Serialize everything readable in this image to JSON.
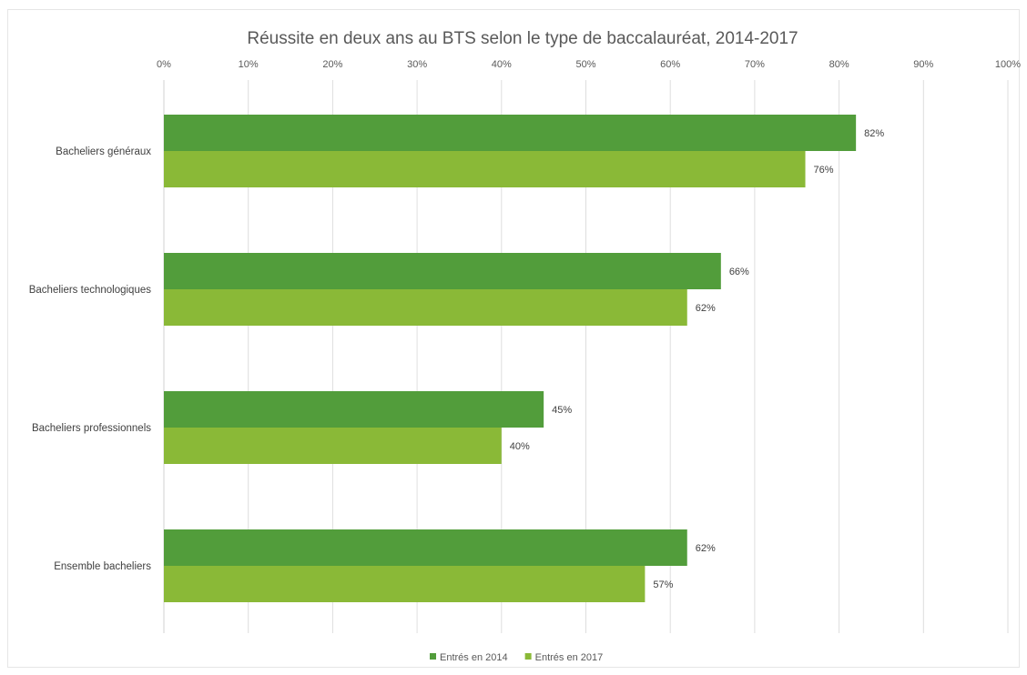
{
  "chart_data": {
    "type": "bar",
    "orientation": "horizontal",
    "title": "Réussite en deux ans au BTS selon le type de baccalauréat, 2014-2017",
    "categories": [
      "Bacheliers généraux",
      "Bacheliers technologiques",
      "Bacheliers professionnels",
      "Ensemble bacheliers"
    ],
    "series": [
      {
        "name": "Entrés en 2014",
        "values": [
          82,
          66,
          45,
          62
        ],
        "labels": [
          "82%",
          "66%",
          "45%",
          "62%"
        ],
        "color": "#529d3b"
      },
      {
        "name": "Entrés en 2017",
        "values": [
          76,
          62,
          40,
          57
        ],
        "labels": [
          "76%",
          "62%",
          "40%",
          "57%"
        ],
        "color": "#8ab937"
      }
    ],
    "x_ticks": [
      "0%",
      "10%",
      "20%",
      "30%",
      "40%",
      "50%",
      "60%",
      "70%",
      "80%",
      "90%",
      "100%"
    ],
    "xlim": [
      0,
      100
    ],
    "x_axis_position": "top",
    "grid": true,
    "legend_position": "bottom"
  }
}
